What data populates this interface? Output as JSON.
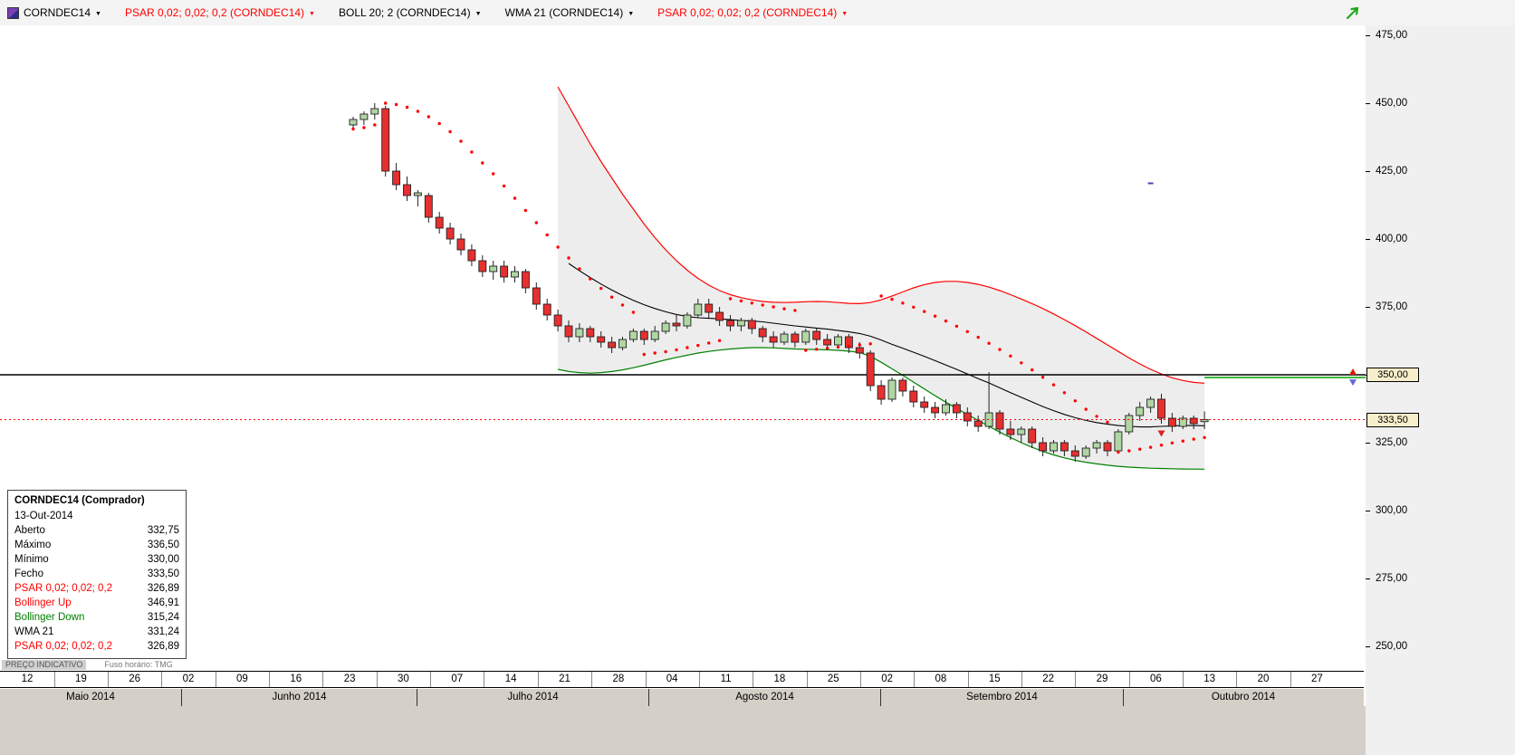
{
  "toolbar": {
    "items": [
      {
        "label": "CORNDEC14",
        "color": "#000000",
        "icon": "instrument-icon"
      },
      {
        "label": "PSAR 0,02; 0,02; 0,2 (CORNDEC14)",
        "color": "#ff0000"
      },
      {
        "label": "BOLL 20; 2 (CORNDEC14)",
        "color": "#000000"
      },
      {
        "label": "WMA 21 (CORNDEC14)",
        "color": "#000000"
      },
      {
        "label": "PSAR 0,02; 0,02; 0,2 (CORNDEC14)",
        "color": "#ff0000"
      }
    ],
    "pointer_tool_color": "#1fa81f"
  },
  "status_bar": {
    "indicative": "PREÇO INDICATIVO",
    "timezone": "Fuso horário: TMG"
  },
  "tooltip": {
    "title": "CORNDEC14 (Comprador)",
    "date": "13-Out-2014",
    "rows": [
      {
        "label": "Aberto",
        "value": "332,75",
        "color": "#000000"
      },
      {
        "label": "Máximo",
        "value": "336,50",
        "color": "#000000"
      },
      {
        "label": "Mínimo",
        "value": "330,00",
        "color": "#000000"
      },
      {
        "label": "Fecho",
        "value": "333,50",
        "color": "#000000"
      },
      {
        "label": "PSAR 0,02; 0,02; 0,2",
        "value": "326,89",
        "color": "#ff0000"
      },
      {
        "label": "Bollinger Up",
        "value": "346,91",
        "color": "#ff0000"
      },
      {
        "label": "Bollinger Down",
        "value": "315,24",
        "color": "#008000"
      },
      {
        "label": "WMA 21",
        "value": "331,24",
        "color": "#000000"
      },
      {
        "label": "PSAR 0,02; 0,02; 0,2",
        "value": "326,89",
        "color": "#ff0000"
      }
    ]
  },
  "price_axis": {
    "ticks": [
      {
        "label": "475,00",
        "value": 475
      },
      {
        "label": "450,00",
        "value": 450
      },
      {
        "label": "425,00",
        "value": 425
      },
      {
        "label": "400,00",
        "value": 400
      },
      {
        "label": "375,00",
        "value": 375
      },
      {
        "label": "350,00",
        "value": 350
      },
      {
        "label": "325,00",
        "value": 325
      },
      {
        "label": "300,00",
        "value": 300
      },
      {
        "label": "275,00",
        "value": 275
      },
      {
        "label": "250,00",
        "value": 250
      }
    ],
    "boxes": [
      {
        "label": "350,00",
        "value": 350
      },
      {
        "label": "333,50",
        "value": 333.5
      }
    ]
  },
  "chart_data": {
    "type": "candlestick",
    "symbol": "CORNDEC14",
    "ylim": [
      248,
      481
    ],
    "hline": 350,
    "last_price": 333.5,
    "x_axis": {
      "weeks": [
        "12",
        "19",
        "26",
        "02",
        "09",
        "16",
        "23",
        "30",
        "07",
        "14",
        "21",
        "28",
        "04",
        "11",
        "18",
        "25",
        "02",
        "08",
        "15",
        "22",
        "29",
        "06",
        "13",
        "20",
        "27"
      ],
      "months": [
        "Maio 2014",
        "Junho 2014",
        "Julho 2014",
        "Agosto 2014",
        "Setembro 2014",
        "Outubro 2014"
      ],
      "month_bounds": [
        0,
        200,
        460,
        716,
        972,
        1240,
        1505
      ]
    },
    "colors": {
      "candle_up": "#b0d6a4",
      "candle_down": "#e82f2f",
      "psar": "#ff0000",
      "boll_upper": "#ff0000",
      "boll_lower": "#008000",
      "wma": "#000000"
    },
    "candles": [
      [
        442,
        445,
        440,
        444
      ],
      [
        444,
        447,
        442,
        446
      ],
      [
        446,
        450,
        444,
        448
      ],
      [
        448,
        449,
        423,
        425
      ],
      [
        425,
        428,
        418,
        420
      ],
      [
        420,
        423,
        414,
        416
      ],
      [
        416,
        418,
        412,
        417
      ],
      [
        416,
        417,
        406,
        408
      ],
      [
        408,
        410,
        402,
        404
      ],
      [
        404,
        406,
        398,
        400
      ],
      [
        400,
        402,
        394,
        396
      ],
      [
        396,
        398,
        390,
        392
      ],
      [
        392,
        394,
        386,
        388
      ],
      [
        388,
        392,
        385,
        390
      ],
      [
        390,
        392,
        384,
        386
      ],
      [
        386,
        390,
        384,
        388
      ],
      [
        388,
        389,
        380,
        382
      ],
      [
        382,
        384,
        374,
        376
      ],
      [
        376,
        378,
        370,
        372
      ],
      [
        372,
        374,
        366,
        368
      ],
      [
        368,
        370,
        362,
        364
      ],
      [
        364,
        369,
        362,
        367
      ],
      [
        367,
        368,
        362,
        364
      ],
      [
        364,
        366,
        360,
        362
      ],
      [
        362,
        364,
        358,
        360
      ],
      [
        360,
        364,
        359,
        363
      ],
      [
        363,
        367,
        362,
        366
      ],
      [
        366,
        367,
        361,
        363
      ],
      [
        363,
        368,
        362,
        366
      ],
      [
        366,
        370,
        365,
        369
      ],
      [
        369,
        372,
        366,
        368
      ],
      [
        368,
        373,
        367,
        372
      ],
      [
        372,
        378,
        371,
        376
      ],
      [
        376,
        378,
        371,
        373
      ],
      [
        373,
        375,
        368,
        370
      ],
      [
        370,
        372,
        366,
        368
      ],
      [
        368,
        371,
        366,
        370
      ],
      [
        370,
        371,
        365,
        367
      ],
      [
        367,
        368,
        362,
        364
      ],
      [
        364,
        366,
        360,
        362
      ],
      [
        362,
        366,
        361,
        365
      ],
      [
        365,
        366,
        360,
        362
      ],
      [
        362,
        367,
        361,
        366
      ],
      [
        366,
        367,
        361,
        363
      ],
      [
        363,
        365,
        359,
        361
      ],
      [
        361,
        365,
        360,
        364
      ],
      [
        364,
        365,
        358,
        360
      ],
      [
        360,
        362,
        356,
        358
      ],
      [
        358,
        359,
        344,
        346
      ],
      [
        346,
        348,
        339,
        341
      ],
      [
        341,
        349,
        340,
        348
      ],
      [
        348,
        349,
        342,
        344
      ],
      [
        344,
        346,
        338,
        340
      ],
      [
        340,
        342,
        336,
        338
      ],
      [
        338,
        340,
        334,
        336
      ],
      [
        336,
        341,
        335,
        339
      ],
      [
        339,
        340,
        334,
        336
      ],
      [
        336,
        338,
        331,
        333
      ],
      [
        333,
        335,
        329,
        331
      ],
      [
        331,
        351,
        330,
        336
      ],
      [
        336,
        337,
        328,
        330
      ],
      [
        330,
        333,
        326,
        328
      ],
      [
        328,
        331,
        325,
        330
      ],
      [
        330,
        331,
        323,
        325
      ],
      [
        325,
        327,
        320,
        322
      ],
      [
        322,
        326,
        321,
        325
      ],
      [
        325,
        326,
        320,
        322
      ],
      [
        322,
        324,
        318,
        320
      ],
      [
        320,
        324,
        319,
        323
      ],
      [
        323,
        326,
        321,
        325
      ],
      [
        325,
        326,
        320,
        322
      ],
      [
        322,
        330,
        321,
        329
      ],
      [
        329,
        336,
        328,
        335
      ],
      [
        335,
        340,
        333,
        338
      ],
      [
        338,
        342,
        336,
        341
      ],
      [
        341,
        343,
        332,
        334
      ],
      [
        334,
        336,
        329,
        331
      ],
      [
        331,
        335,
        330,
        334
      ],
      [
        334,
        335,
        330,
        332
      ],
      [
        332.75,
        336.5,
        330,
        333.5
      ]
    ],
    "bands": {
      "start_index": 19,
      "upper": [
        456,
        449,
        442,
        435,
        428.5,
        422.5,
        416.5,
        411,
        405.5,
        400.5,
        396,
        392,
        388.5,
        385.5,
        383,
        381,
        379.5,
        378.4,
        377.6,
        377,
        376.7,
        376.6,
        376.7,
        376.9,
        377,
        376.9,
        376.6,
        376.3,
        376.2,
        376.6,
        377.6,
        379,
        380.5,
        382,
        383.2,
        384,
        384.4,
        384.4,
        384,
        383.3,
        382.3,
        381,
        379.5,
        377.9,
        376.2,
        374.4,
        372.4,
        370.3,
        368.1,
        365.8,
        363.4,
        361,
        358.6,
        356.2,
        354,
        352,
        350.3,
        348.9,
        347.9,
        347.2,
        346.91
      ],
      "lower": [
        352,
        351.2,
        350.8,
        350.6,
        350.8,
        351.2,
        351.8,
        352.6,
        353.5,
        354.5,
        355.5,
        356.4,
        357.2,
        358,
        358.6,
        359.1,
        359.5,
        359.8,
        360,
        360,
        359.9,
        359.7,
        359.5,
        359.4,
        359.3,
        359.2,
        359,
        358.7,
        358.2,
        356.8,
        354.6,
        352.2,
        349.8,
        347.3,
        344.8,
        342.3,
        339.9,
        337.6,
        335.4,
        333.2,
        331,
        328.9,
        326.9,
        325,
        323.3,
        321.8,
        320.5,
        319.4,
        318.5,
        317.8,
        317.2,
        316.7,
        316.3,
        316,
        315.8,
        315.6,
        315.5,
        315.4,
        315.3,
        315.27,
        315.24
      ]
    },
    "wma21": {
      "start_index": 20,
      "values": [
        391,
        388.3,
        385.8,
        383.4,
        381.2,
        379.2,
        377.4,
        375.8,
        374.4,
        373.2,
        372.2,
        371.5,
        371,
        370.8,
        370.6,
        370.3,
        370,
        369.8,
        369.5,
        369,
        368.5,
        368,
        367.6,
        367.2,
        366.8,
        366.3,
        365.8,
        365.2,
        364.2,
        362.8,
        361.2,
        359.8,
        358.3,
        356.8,
        355.2,
        353.6,
        352,
        350.3,
        348.6,
        347,
        345.2,
        343.4,
        341.7,
        340,
        338.3,
        336.8,
        335.4,
        334.2,
        333.2,
        332.4,
        331.8,
        331.3,
        331,
        330.8,
        330.8,
        331,
        331.2,
        331.3,
        331.3,
        331.24
      ]
    },
    "psar": [
      [
        0,
        440.5
      ],
      [
        1,
        441
      ],
      [
        2,
        442
      ],
      [
        3,
        450
      ],
      [
        4,
        449.5
      ],
      [
        5,
        448.5
      ],
      [
        6,
        447
      ],
      [
        7,
        445
      ],
      [
        8,
        442.5
      ],
      [
        9,
        439.5
      ],
      [
        10,
        436
      ],
      [
        11,
        432
      ],
      [
        12,
        428
      ],
      [
        13,
        424
      ],
      [
        14,
        419.5
      ],
      [
        15,
        415
      ],
      [
        16,
        410.5
      ],
      [
        17,
        406
      ],
      [
        18,
        401.5
      ],
      [
        19,
        397
      ],
      [
        20,
        393
      ],
      [
        21,
        389
      ],
      [
        22,
        385.3
      ],
      [
        23,
        381.8
      ],
      [
        24,
        378.6
      ],
      [
        25,
        375.7
      ],
      [
        26,
        373
      ],
      [
        27,
        357.5
      ],
      [
        28,
        358
      ],
      [
        29,
        358.5
      ],
      [
        30,
        359.2
      ],
      [
        31,
        360
      ],
      [
        32,
        360.8
      ],
      [
        33,
        361.7
      ],
      [
        34,
        362.6
      ],
      [
        35,
        378
      ],
      [
        36,
        377.2
      ],
      [
        37,
        376.4
      ],
      [
        38,
        375.7
      ],
      [
        39,
        375
      ],
      [
        40,
        374.3
      ],
      [
        41,
        373.7
      ],
      [
        42,
        359
      ],
      [
        43,
        359.4
      ],
      [
        44,
        359.8
      ],
      [
        45,
        360.2
      ],
      [
        46,
        360.6
      ],
      [
        47,
        361
      ],
      [
        48,
        361.4
      ],
      [
        49,
        379
      ],
      [
        50,
        377.8
      ],
      [
        51,
        376.4
      ],
      [
        52,
        374.9
      ],
      [
        53,
        373.3
      ],
      [
        54,
        371.6
      ],
      [
        55,
        369.8
      ],
      [
        56,
        367.9
      ],
      [
        57,
        365.9
      ],
      [
        58,
        363.8
      ],
      [
        59,
        361.6
      ],
      [
        60,
        359.3
      ],
      [
        61,
        356.9
      ],
      [
        62,
        354.4
      ],
      [
        63,
        351.8
      ],
      [
        64,
        349.1
      ],
      [
        65,
        346.3
      ],
      [
        66,
        343.4
      ],
      [
        67,
        340.4
      ],
      [
        68,
        337.3
      ],
      [
        69,
        334.7
      ],
      [
        70,
        332.6
      ],
      [
        71,
        321.5
      ],
      [
        72,
        322
      ],
      [
        73,
        322.6
      ],
      [
        74,
        323.3
      ],
      [
        75,
        324.1
      ],
      [
        76,
        324.9
      ],
      [
        77,
        325.6
      ],
      [
        78,
        326.3
      ],
      [
        79,
        326.89
      ]
    ],
    "position_line": {
      "value": 349,
      "from_bar": 79,
      "color": "#00a000"
    },
    "markers": [
      {
        "shape": "triangle-down",
        "color": "#dd2222",
        "bar": 75,
        "value": 328.5
      },
      {
        "shape": "dash",
        "color": "#4444bb",
        "bar": 74,
        "value": 420.5
      },
      {
        "shape": "arrow-up",
        "color": "#cc2200",
        "at_right": true,
        "value": 351
      },
      {
        "shape": "triangle-down",
        "color": "#6666dd",
        "at_right": true,
        "value": 347.3
      }
    ]
  }
}
